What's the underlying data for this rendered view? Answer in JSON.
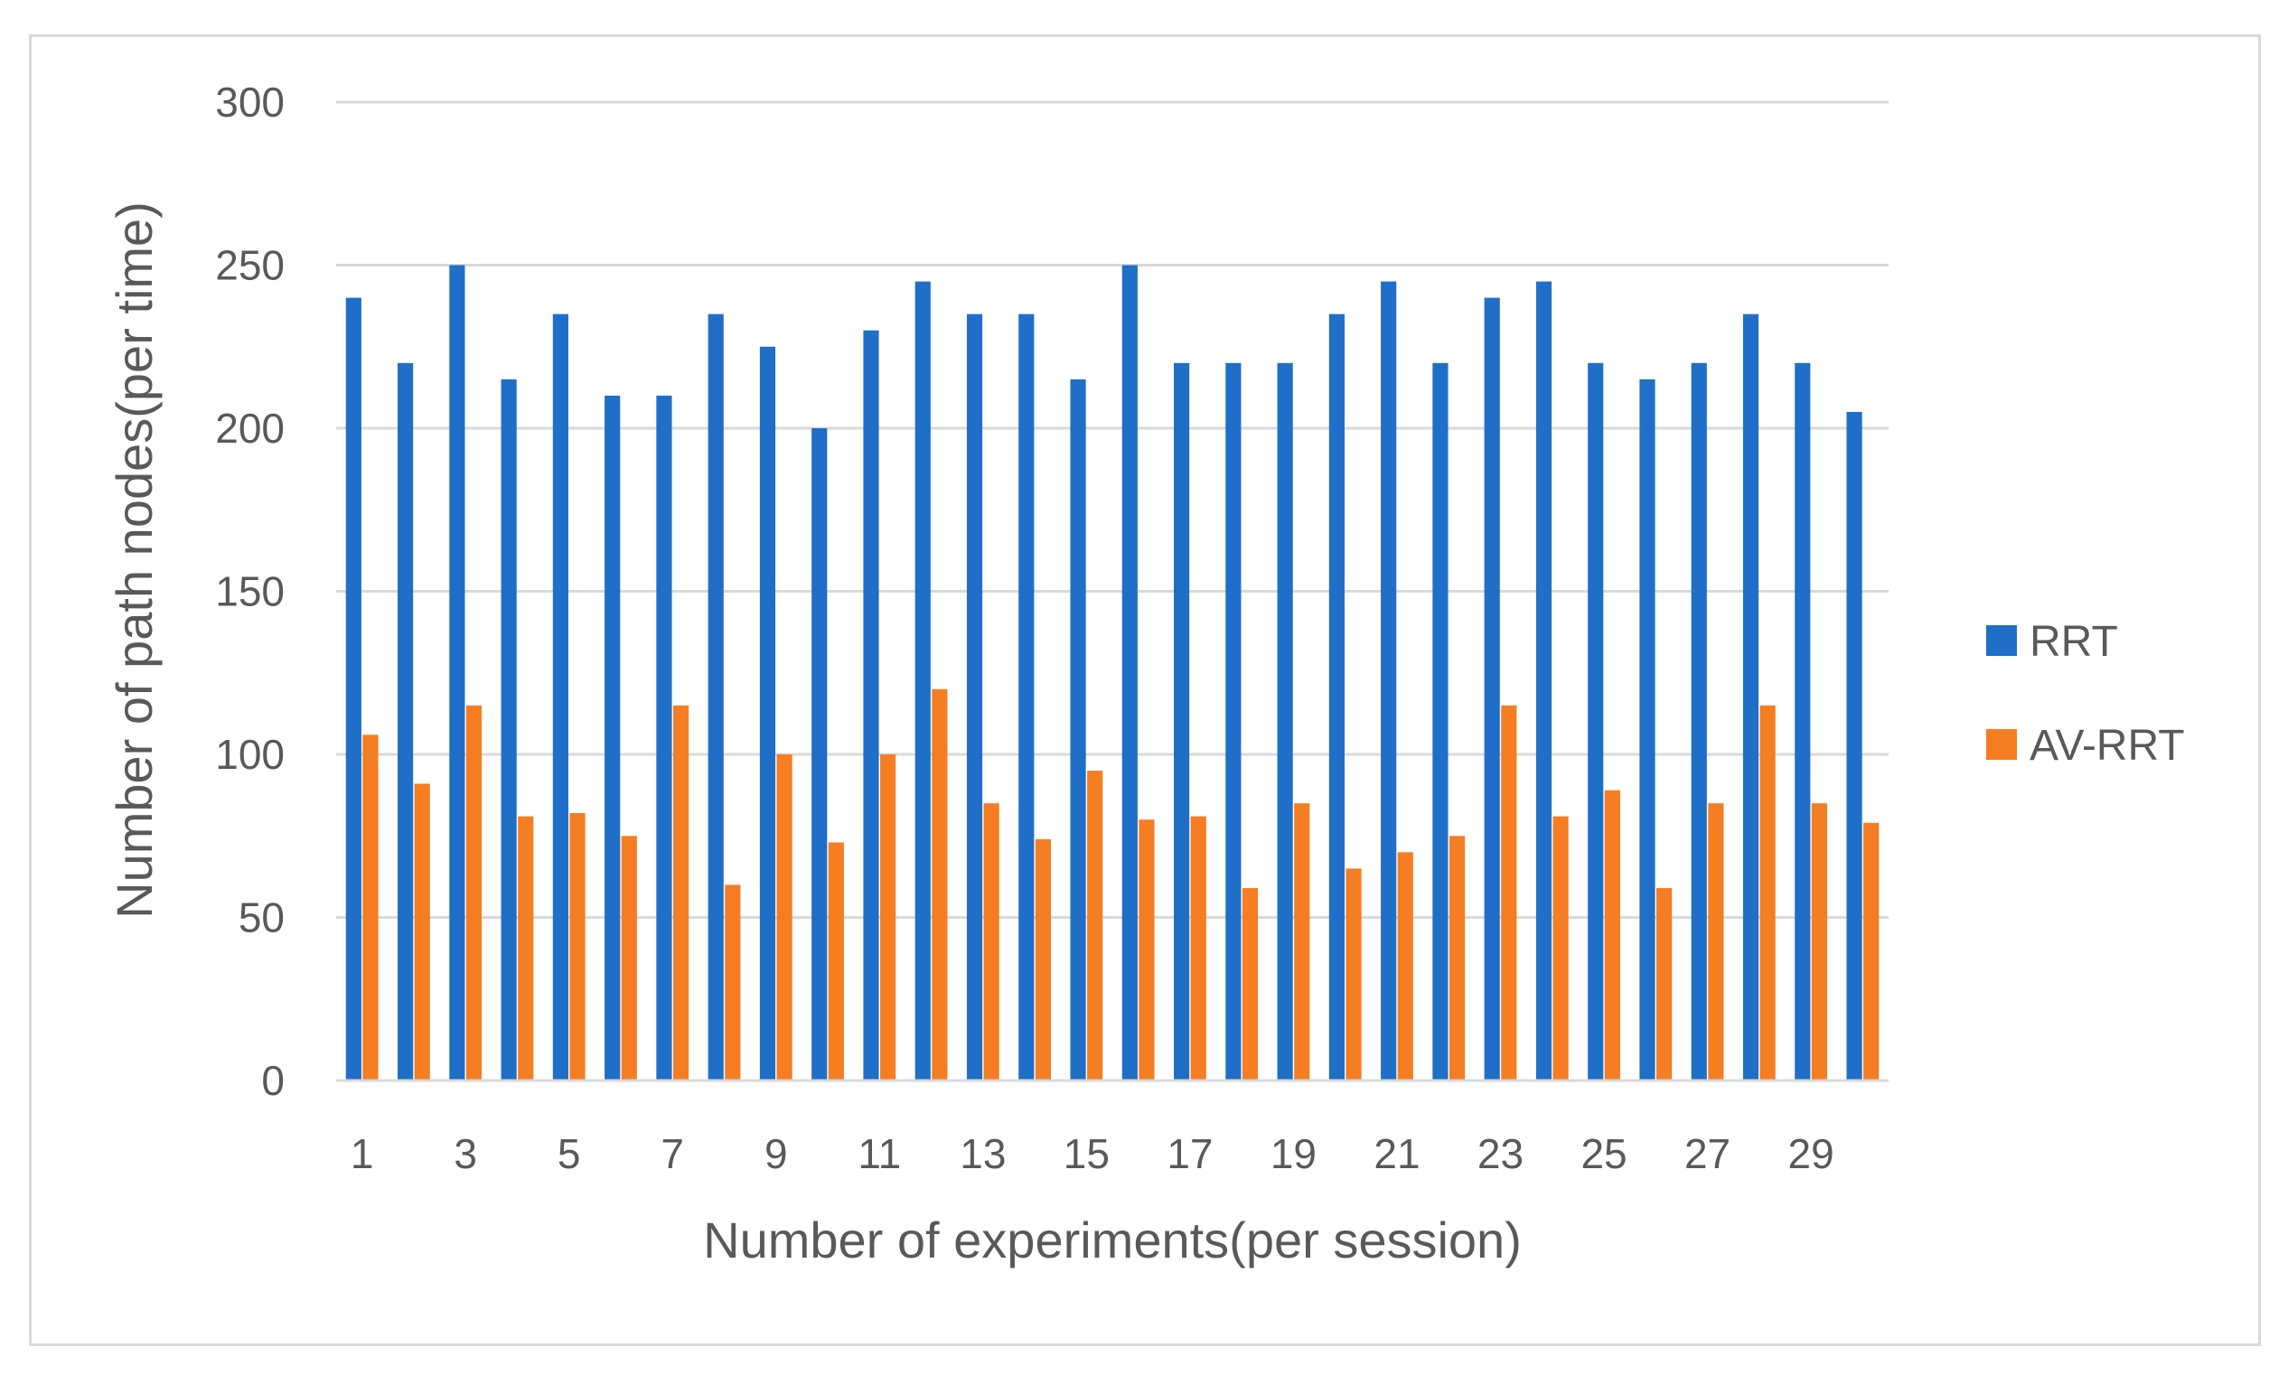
{
  "chart_data": {
    "type": "bar",
    "title": "",
    "xlabel": "Number of experiments(per session)",
    "ylabel": "Number of path nodes(per time)",
    "ylim": [
      0,
      300
    ],
    "yticks": [
      0,
      50,
      100,
      150,
      200,
      250,
      300
    ],
    "grid": true,
    "legend_position": "right",
    "categories": [
      1,
      2,
      3,
      4,
      5,
      6,
      7,
      8,
      9,
      10,
      11,
      12,
      13,
      14,
      15,
      16,
      17,
      18,
      19,
      20,
      21,
      22,
      23,
      24,
      25,
      26,
      27,
      28,
      29,
      30
    ],
    "xtick_labels": [
      "1",
      "3",
      "5",
      "7",
      "9",
      "11",
      "13",
      "15",
      "17",
      "19",
      "21",
      "23",
      "25",
      "27",
      "29"
    ],
    "series": [
      {
        "name": "RRT",
        "color": "#1f6fc8",
        "values": [
          240,
          220,
          250,
          215,
          235,
          210,
          210,
          235,
          225,
          200,
          230,
          245,
          235,
          235,
          215,
          250,
          220,
          220,
          220,
          235,
          245,
          220,
          240,
          245,
          220,
          215,
          220,
          235,
          220,
          205
        ]
      },
      {
        "name": "AV-RRT",
        "color": "#f57d22",
        "values": [
          106,
          91,
          115,
          81,
          82,
          75,
          115,
          60,
          100,
          73,
          100,
          120,
          85,
          74,
          95,
          80,
          81,
          59,
          85,
          65,
          70,
          75,
          115,
          81,
          89,
          59,
          85,
          115,
          85,
          79
        ]
      }
    ]
  }
}
